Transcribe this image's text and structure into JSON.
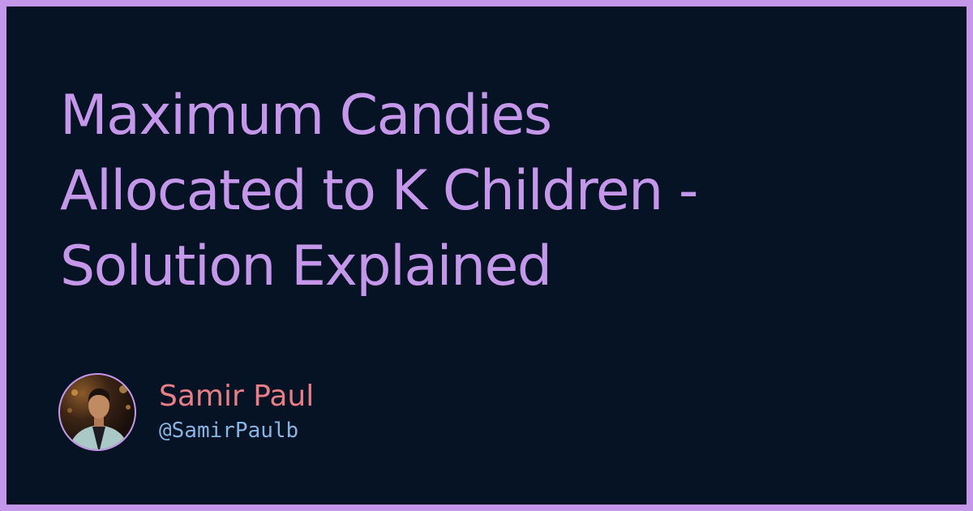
{
  "title": {
    "line1": "Maximum Candies",
    "line2": "Allocated to K Children -",
    "line3": "Solution Explained"
  },
  "author": {
    "name": "Samir Paul",
    "handle": "@SamirPaulb"
  },
  "colors": {
    "border": "#c597ea",
    "background": "#051324",
    "title": "#c597ea",
    "name": "#e87f86",
    "handle": "#87b4e3"
  }
}
